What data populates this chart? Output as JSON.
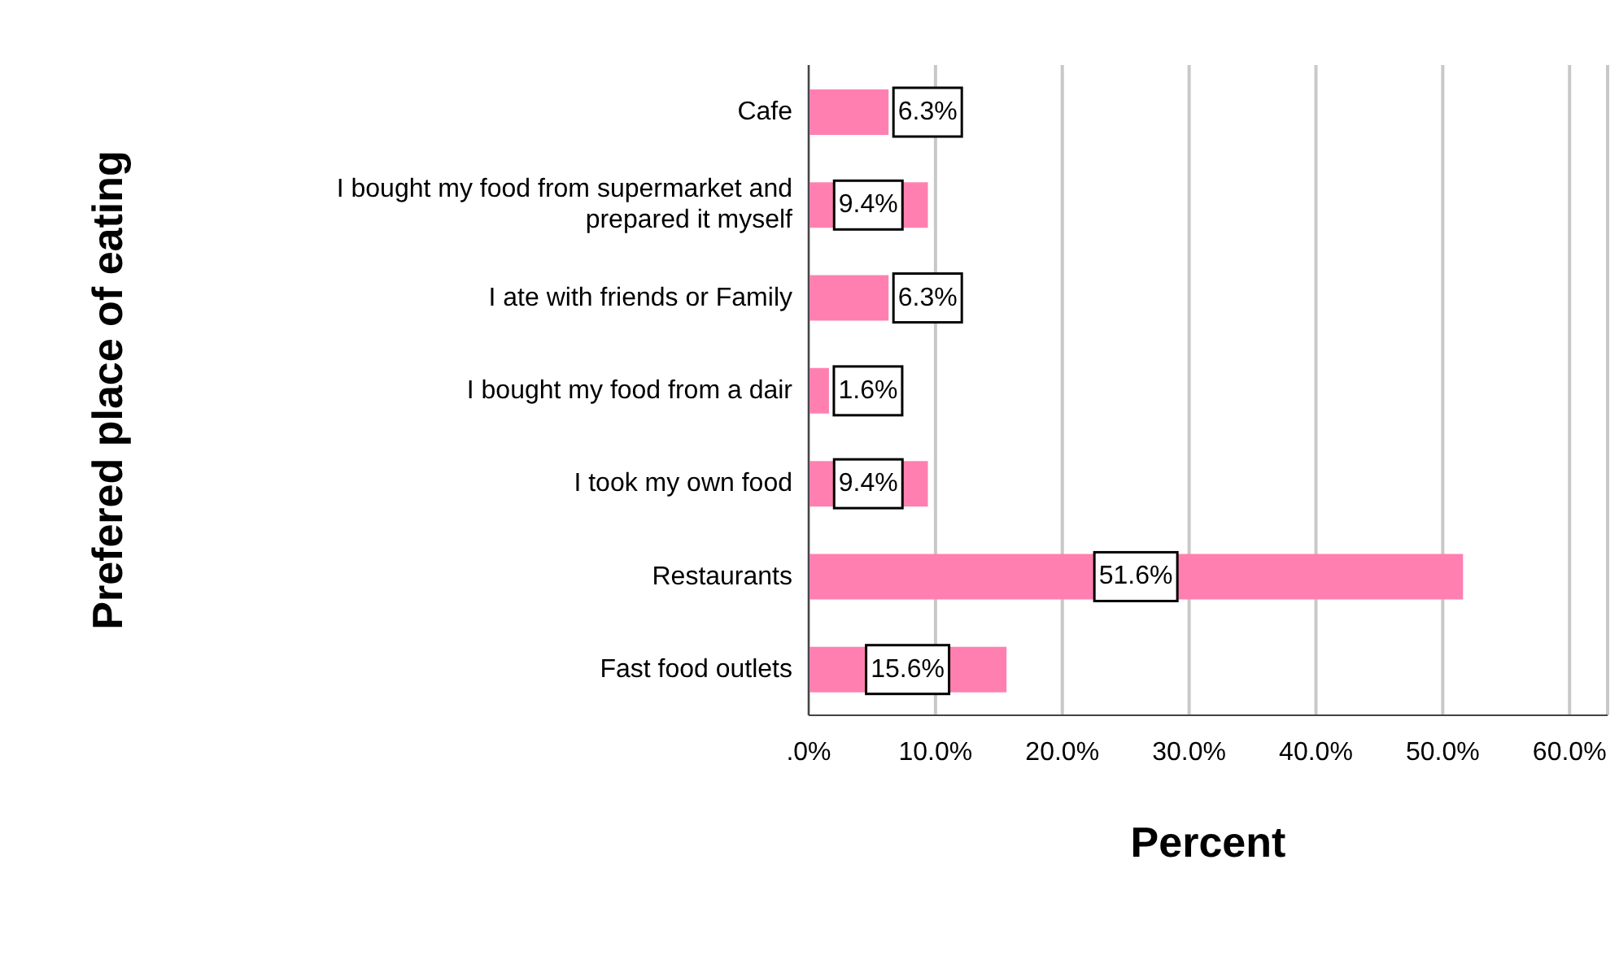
{
  "chart_data": {
    "type": "bar",
    "orientation": "horizontal",
    "xlabel": "Percent",
    "ylabel": "Prefered place of eating",
    "categories": [
      "Cafe",
      "I bought my food from supermarket and prepared it myself",
      "I ate with friends or Family",
      "I bought my food from a dair",
      "I took my own food",
      "Restaurants",
      "Fast food outlets"
    ],
    "values": [
      6.3,
      9.4,
      6.3,
      1.6,
      9.4,
      51.6,
      15.6
    ],
    "value_labels": [
      "6.3%",
      "9.4%",
      "6.3%",
      "1.6%",
      "9.4%",
      "51.6%",
      "15.6%"
    ],
    "color": "#ff80b0",
    "xlim": [
      0,
      63
    ],
    "xticks": [
      {
        "value": 0,
        "label": ".0%"
      },
      {
        "value": 10,
        "label": "10.0%"
      },
      {
        "value": 20,
        "label": "20.0%"
      },
      {
        "value": 30,
        "label": "30.0%"
      },
      {
        "value": 40,
        "label": "40.0%"
      },
      {
        "value": 50,
        "label": "50.0%"
      },
      {
        "value": 60,
        "label": "60.0%"
      }
    ],
    "grid": "x",
    "legend": false
  }
}
